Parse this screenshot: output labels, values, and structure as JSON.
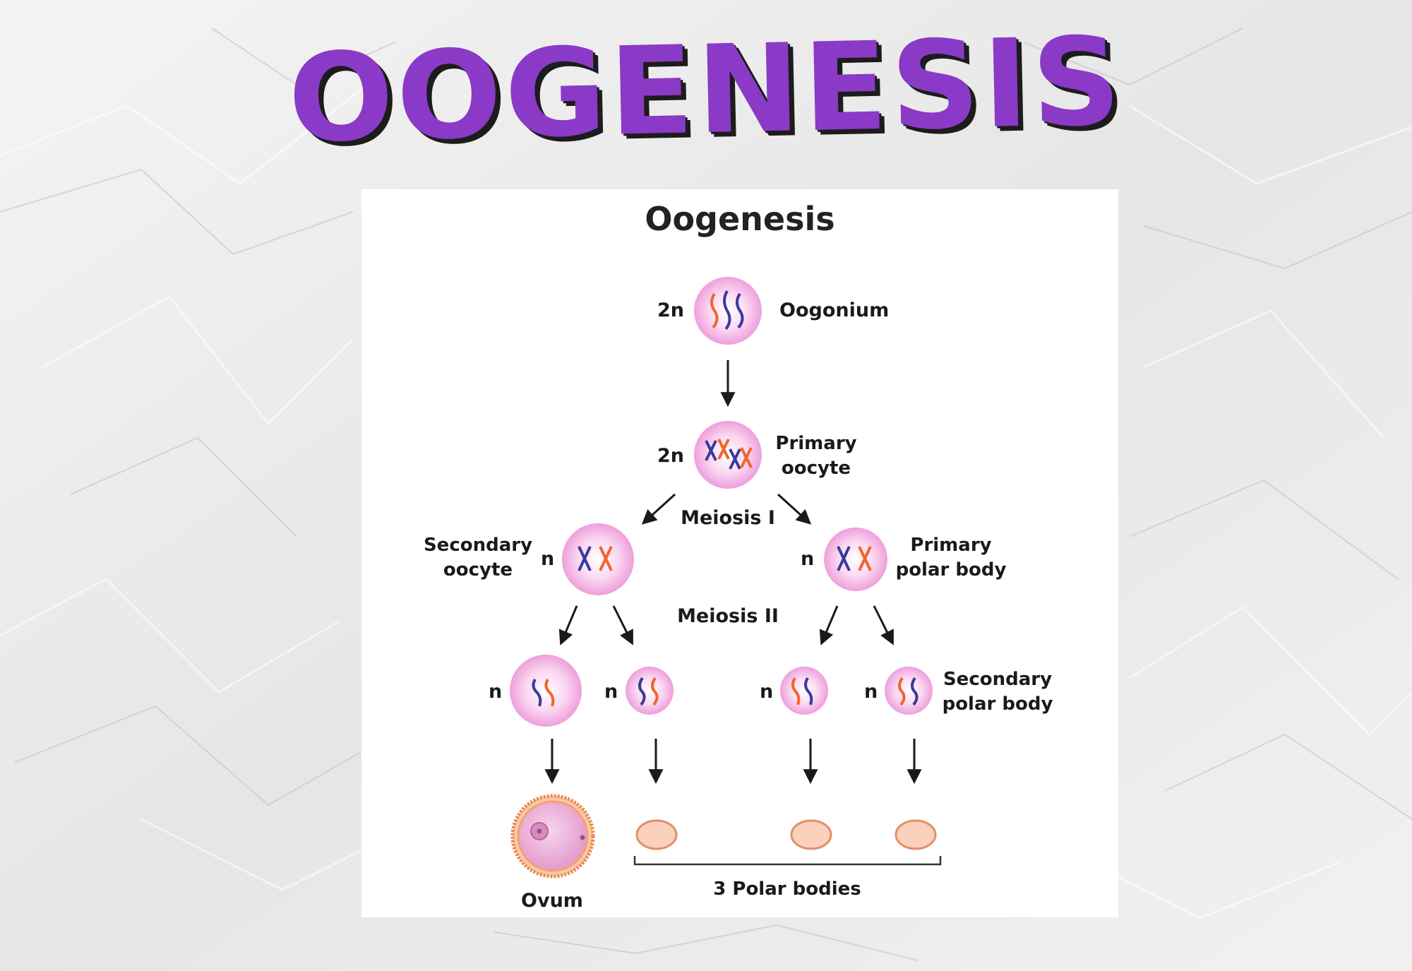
{
  "banner_title": "OOGENESIS",
  "diagram": {
    "title": "Oogenesis",
    "ploidy": {
      "diploid": "2n",
      "haploid": "n"
    },
    "stages": {
      "oogonium": "Oogonium",
      "primary_oocyte": [
        "Primary",
        "oocyte"
      ],
      "meiosis_1": "Meiosis I",
      "secondary_oocyte": [
        "Secondary",
        "oocyte"
      ],
      "primary_polar_body": [
        "Primary",
        "polar body"
      ],
      "meiosis_2": "Meiosis II",
      "secondary_polar_body": [
        "Secondary",
        "polar body"
      ],
      "ovum": "Ovum",
      "polar_bodies": "3 Polar bodies"
    }
  },
  "colors": {
    "title_purple": "#8a3ac6",
    "title_shadow": "#1c1c1c",
    "chromosome_blue": "#3a3a9e",
    "chromosome_orange": "#f0662a",
    "cell_pink": "#f3b4e4",
    "polar_body_fill": "#fbd0bd",
    "polar_body_stroke": "#e0906a",
    "ovum_ring": "#e98a52"
  }
}
